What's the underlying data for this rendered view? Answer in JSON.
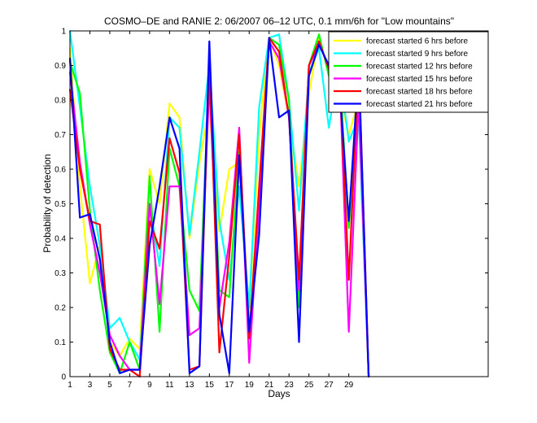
{
  "chart_data": {
    "type": "line",
    "title": "COSMO–DE and RANIE 2: 06/2007 06–12 UTC, 0.1 mm/6h for \"Low mountains\"",
    "xlabel": "Days",
    "ylabel": "Probability of detection",
    "xlim": [
      1,
      43
    ],
    "ylim": [
      0,
      1
    ],
    "x_ticks": [
      1,
      3,
      5,
      7,
      9,
      11,
      13,
      15,
      17,
      19,
      21,
      23,
      25,
      27,
      29
    ],
    "y_ticks": [
      0,
      0.1,
      0.2,
      0.3,
      0.4,
      0.5,
      0.6,
      0.7,
      0.8,
      0.9,
      1
    ],
    "y_tick_labels": [
      "0",
      "0.1",
      "0.2",
      "0.3",
      "0.4",
      "0.5",
      "0.6",
      "0.7",
      "0.8",
      "0.9",
      "1"
    ],
    "grid": false,
    "legend_position": "top-right",
    "x": [
      1,
      2,
      3,
      4,
      5,
      6,
      7,
      8,
      9,
      10,
      11,
      12,
      13,
      14,
      15,
      16,
      17,
      18,
      19,
      20,
      21,
      22,
      23,
      24,
      25,
      26,
      27,
      28,
      29,
      30,
      31
    ],
    "series": [
      {
        "name": "forecast started 6 hrs before",
        "color": "#ffff00",
        "values": [
          0.95,
          0.55,
          0.27,
          0.38,
          0.1,
          0.06,
          0.11,
          0.08,
          0.6,
          0.5,
          0.79,
          0.75,
          0.4,
          0.62,
          0.78,
          0.42,
          0.6,
          0.62,
          0.18,
          0.7,
          0.98,
          0.9,
          0.75,
          0.55,
          0.82,
          0.98,
          0.88,
          0.82,
          0.7,
          0.8,
          0.0
        ]
      },
      {
        "name": "forecast started 9 hrs before",
        "color": "#00ffff",
        "values": [
          1.0,
          0.78,
          0.55,
          0.38,
          0.14,
          0.17,
          0.1,
          0.05,
          0.5,
          0.32,
          0.75,
          0.72,
          0.41,
          0.65,
          0.9,
          0.45,
          0.28,
          0.55,
          0.2,
          0.78,
          0.98,
          0.99,
          0.8,
          0.48,
          0.88,
          0.95,
          0.72,
          0.9,
          0.68,
          0.75,
          0.0
        ]
      },
      {
        "name": "forecast started 12 hrs before",
        "color": "#00ff00",
        "values": [
          0.91,
          0.82,
          0.48,
          0.25,
          0.07,
          0.01,
          0.1,
          0.02,
          0.58,
          0.13,
          0.66,
          0.55,
          0.25,
          0.19,
          0.9,
          0.25,
          0.23,
          0.65,
          0.13,
          0.48,
          0.98,
          0.96,
          0.8,
          0.2,
          0.9,
          0.99,
          0.87,
          0.92,
          0.43,
          0.82,
          0.0
        ]
      },
      {
        "name": "forecast started 15 hrs before",
        "color": "#ff00ff",
        "values": [
          0.88,
          0.62,
          0.44,
          0.3,
          0.12,
          0.06,
          0.02,
          0.02,
          0.5,
          0.21,
          0.55,
          0.55,
          0.12,
          0.14,
          0.85,
          0.2,
          0.39,
          0.72,
          0.04,
          0.5,
          0.97,
          0.92,
          0.75,
          0.25,
          0.9,
          0.96,
          0.9,
          0.94,
          0.13,
          0.8,
          0.0
        ]
      },
      {
        "name": "forecast started 18 hrs before",
        "color": "#ff0000",
        "values": [
          0.83,
          0.6,
          0.45,
          0.44,
          0.08,
          0.02,
          0.02,
          0.0,
          0.45,
          0.37,
          0.69,
          0.59,
          0.02,
          0.03,
          0.92,
          0.07,
          0.35,
          0.7,
          0.11,
          0.55,
          0.98,
          0.94,
          0.75,
          0.28,
          0.9,
          0.97,
          0.89,
          0.92,
          0.28,
          0.91,
          0.0
        ]
      },
      {
        "name": "forecast started 21 hrs before",
        "color": "#0000ff",
        "values": [
          0.92,
          0.46,
          0.47,
          0.34,
          0.1,
          0.01,
          0.02,
          0.02,
          0.38,
          0.55,
          0.75,
          0.66,
          0.01,
          0.03,
          0.97,
          0.18,
          0.01,
          0.64,
          0.13,
          0.41,
          0.98,
          0.75,
          0.77,
          0.1,
          0.87,
          0.96,
          0.9,
          0.87,
          0.45,
          0.9,
          0.0
        ]
      }
    ]
  }
}
